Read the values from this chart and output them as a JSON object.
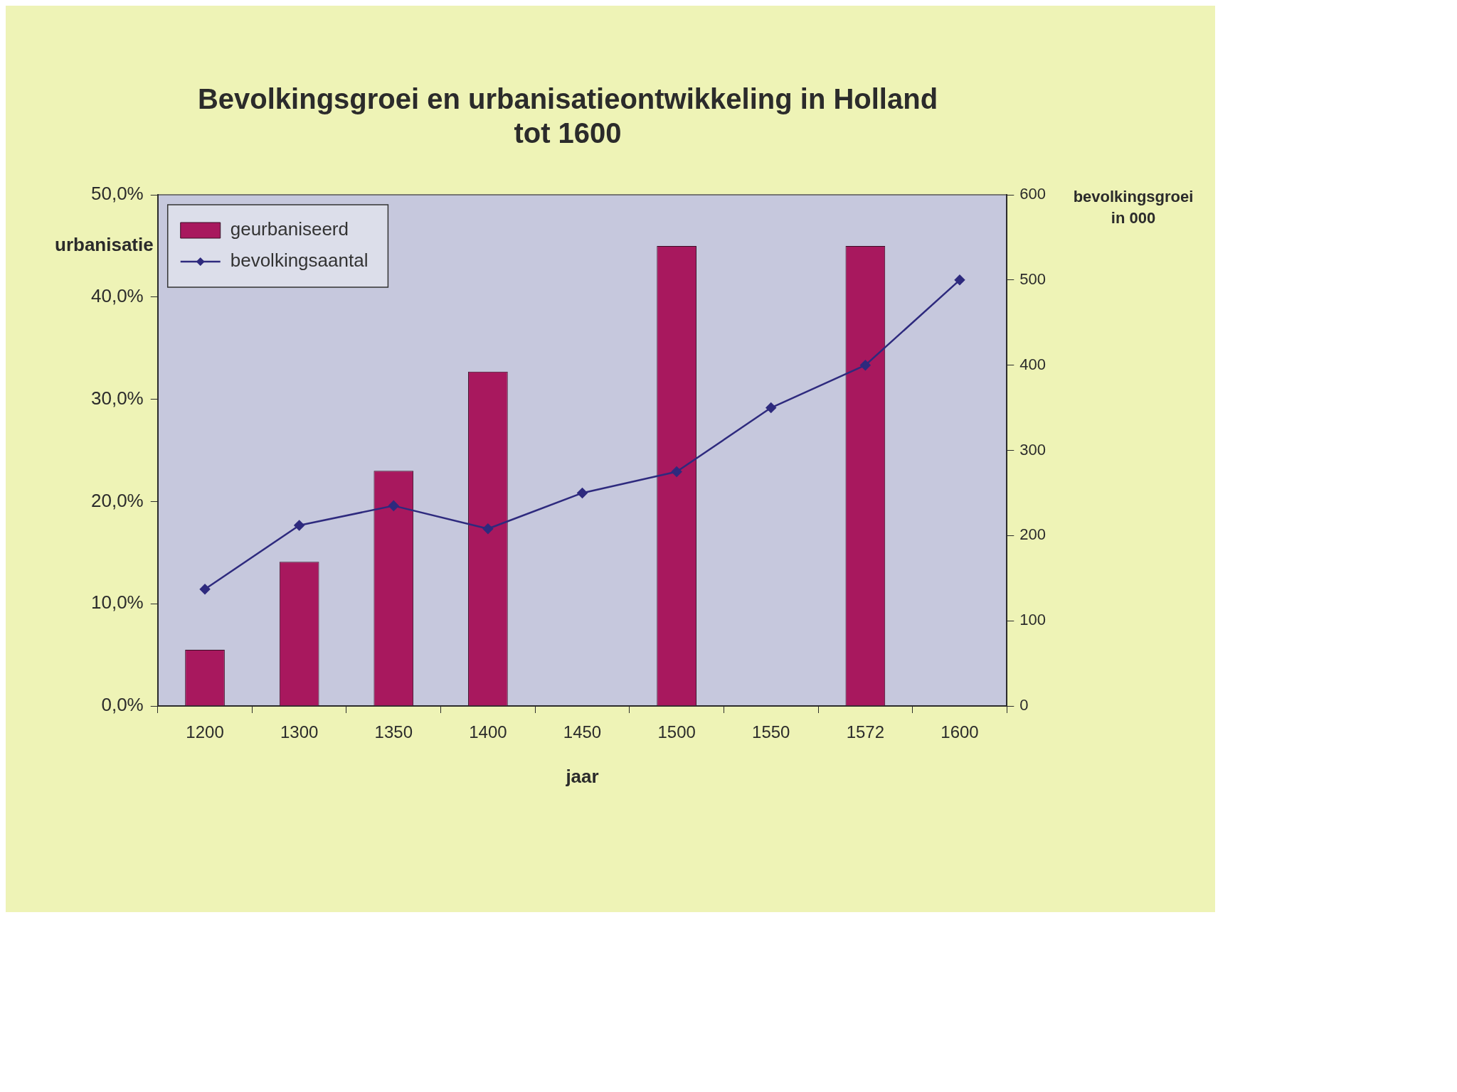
{
  "chart_data": {
    "type": "bar",
    "title": "Bevolkingsgroei en urbanisatieontwikkeling in Holland tot 1600",
    "xlabel": "jaar",
    "ylabel": "urbanisatie",
    "y2label": "bevolkingsgroei in 000",
    "categories": [
      "1200",
      "1300",
      "1350",
      "1400",
      "1450",
      "1500",
      "1550",
      "1572",
      "1600"
    ],
    "series": [
      {
        "name": "geurbaniseerd",
        "color": "#a8185e",
        "values": [
          5.5,
          14.1,
          23,
          32.7,
          null,
          45,
          null,
          45,
          null
        ]
      },
      {
        "name": "bevolkingsaantal",
        "type": "line",
        "axis": "y2",
        "marker": "diamond",
        "color": "#2e2a7e",
        "values": [
          137,
          212,
          235,
          208,
          250,
          275,
          350,
          400,
          500
        ]
      }
    ],
    "ylim": [
      0,
      50
    ],
    "yticks": [
      {
        "value": 0,
        "label": "0,0%"
      },
      {
        "value": 10,
        "label": "10,0%"
      },
      {
        "value": 20,
        "label": "20,0%"
      },
      {
        "value": 30,
        "label": "30,0%"
      },
      {
        "value": 40,
        "label": "40,0%"
      },
      {
        "value": 50,
        "label": "50,0%"
      }
    ],
    "y2lim": [
      0,
      600
    ],
    "y2ticks": [
      0,
      100,
      200,
      300,
      400,
      500,
      600
    ],
    "legend": "top left"
  }
}
